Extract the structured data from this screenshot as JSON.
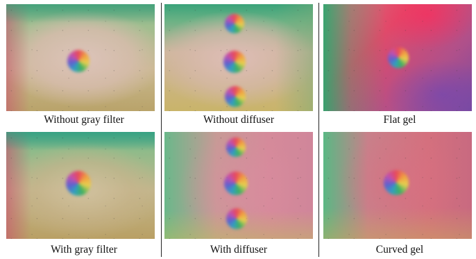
{
  "panels": [
    {
      "id": "without-gray-filter",
      "caption": "Without gray filter"
    },
    {
      "id": "without-diffuser",
      "caption": "Without diffuser"
    },
    {
      "id": "flat-gel",
      "caption": "Flat gel"
    },
    {
      "id": "with-gray-filter",
      "caption": "With gray filter"
    },
    {
      "id": "with-diffuser",
      "caption": "With diffuser"
    },
    {
      "id": "curved-gel",
      "caption": "Curved gel"
    }
  ]
}
